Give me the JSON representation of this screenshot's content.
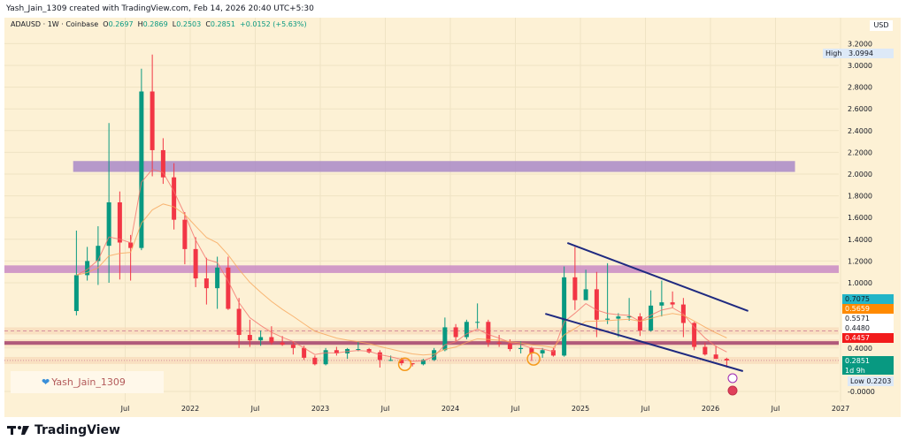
{
  "header": {
    "text": "Yash_Jain_1309 created with TradingView.com, Feb 14, 2026 20:40 UTC+5:30"
  },
  "legend": {
    "symbol": "ADAUSD · 1W · Coinbase",
    "o_label": "O",
    "o": "0.2697",
    "h_label": "H",
    "h": "0.2869",
    "l_label": "L",
    "l": "0.2503",
    "c_label": "C",
    "c": "0.2851",
    "change": "+0.0152 (+5.63%)"
  },
  "axis": {
    "currency": "USD"
  },
  "price_labels": {
    "high_label": "High",
    "high": "3.0994",
    "low_label": "Low",
    "low": "0.2203",
    "cyan": "0.7075",
    "orange": "0.5659",
    "white1": "0.5571",
    "white2": "0.4480",
    "red": "0.4457",
    "last": "0.2851",
    "countdown": "1d 9h"
  },
  "watermark": {
    "text": "Yash_Jain_1309"
  },
  "brand": {
    "name": "TradingView"
  },
  "colors": {
    "up": "#089981",
    "down": "#f23645",
    "zone": "#9c6fc0",
    "channel": "#1f2a80",
    "bg": "#fdf1d5"
  },
  "chart_data": {
    "type": "candlestick",
    "title": "ADAUSD · 1W · Coinbase",
    "y_scale": "linear",
    "ylim": [
      -0.05,
      3.25
    ],
    "y_ticks": [
      "3.2000",
      "3.0000",
      "2.8000",
      "2.6000",
      "2.4000",
      "2.2000",
      "2.0000",
      "1.8000",
      "1.6000",
      "1.4000",
      "1.2000",
      "1.0000",
      "0.4000",
      "-0.0000"
    ],
    "y_tick_values": [
      3.2,
      3.0,
      2.8,
      2.6,
      2.4,
      2.2,
      2.0,
      1.8,
      1.6,
      1.4,
      1.2,
      1.0,
      0.4,
      0
    ],
    "x_ticks": [
      "Jul",
      "2022",
      "Jul",
      "2023",
      "Jul",
      "2024",
      "Jul",
      "2025",
      "Jul",
      "2026",
      "Jul",
      "2027"
    ],
    "x_tick_values": [
      2021.5,
      2022,
      2022.5,
      2023,
      2023.5,
      2024,
      2024.5,
      2025,
      2025.5,
      2026,
      2026.5,
      2027
    ],
    "grid": true,
    "candles_monthly_approx": [
      [
        "2021-02",
        0.74,
        1.48,
        0.7,
        1.07
      ],
      [
        "2021-03",
        1.07,
        1.33,
        1.02,
        1.2
      ],
      [
        "2021-04",
        1.2,
        1.52,
        0.98,
        1.34
      ],
      [
        "2021-05",
        1.34,
        2.47,
        1.0,
        1.74
      ],
      [
        "2021-06",
        1.74,
        1.84,
        1.03,
        1.37
      ],
      [
        "2021-07",
        1.37,
        1.44,
        1.02,
        1.32
      ],
      [
        "2021-08",
        1.32,
        2.97,
        1.3,
        2.76
      ],
      [
        "2021-09",
        2.76,
        3.1,
        1.98,
        2.22
      ],
      [
        "2021-10",
        2.22,
        2.33,
        1.91,
        1.97
      ],
      [
        "2021-11",
        1.97,
        2.1,
        1.49,
        1.58
      ],
      [
        "2021-12",
        1.58,
        1.65,
        1.17,
        1.31
      ],
      [
        "2022-01",
        1.31,
        1.42,
        0.96,
        1.04
      ],
      [
        "2022-02",
        1.04,
        1.23,
        0.8,
        0.95
      ],
      [
        "2022-03",
        0.95,
        1.24,
        0.76,
        1.14
      ],
      [
        "2022-04",
        1.14,
        1.24,
        0.75,
        0.76
      ],
      [
        "2022-05",
        0.76,
        0.86,
        0.4,
        0.52
      ],
      [
        "2022-06",
        0.52,
        0.66,
        0.41,
        0.47
      ],
      [
        "2022-07",
        0.47,
        0.56,
        0.42,
        0.5
      ],
      [
        "2022-08",
        0.5,
        0.6,
        0.43,
        0.45
      ],
      [
        "2022-09",
        0.45,
        0.51,
        0.42,
        0.43
      ],
      [
        "2022-10",
        0.43,
        0.46,
        0.34,
        0.4
      ],
      [
        "2022-11",
        0.4,
        0.42,
        0.29,
        0.31
      ],
      [
        "2022-12",
        0.31,
        0.33,
        0.24,
        0.25
      ],
      [
        "2023-01",
        0.25,
        0.4,
        0.24,
        0.38
      ],
      [
        "2023-02",
        0.38,
        0.41,
        0.33,
        0.35
      ],
      [
        "2023-03",
        0.35,
        0.4,
        0.3,
        0.39
      ],
      [
        "2023-04",
        0.39,
        0.46,
        0.37,
        0.39
      ],
      [
        "2023-05",
        0.39,
        0.4,
        0.35,
        0.36
      ],
      [
        "2023-06",
        0.36,
        0.38,
        0.22,
        0.29
      ],
      [
        "2023-07",
        0.29,
        0.33,
        0.28,
        0.29
      ],
      [
        "2023-08",
        0.29,
        0.31,
        0.24,
        0.26
      ],
      [
        "2023-09",
        0.26,
        0.26,
        0.23,
        0.25
      ],
      [
        "2023-10",
        0.25,
        0.3,
        0.24,
        0.29
      ],
      [
        "2023-11",
        0.29,
        0.4,
        0.28,
        0.38
      ],
      [
        "2023-12",
        0.38,
        0.68,
        0.37,
        0.59
      ],
      [
        "2024-01",
        0.59,
        0.62,
        0.46,
        0.5
      ],
      [
        "2024-02",
        0.5,
        0.66,
        0.48,
        0.64
      ],
      [
        "2024-03",
        0.64,
        0.81,
        0.58,
        0.64
      ],
      [
        "2024-04",
        0.64,
        0.66,
        0.41,
        0.45
      ],
      [
        "2024-05",
        0.45,
        0.52,
        0.41,
        0.44
      ],
      [
        "2024-06",
        0.44,
        0.48,
        0.37,
        0.39
      ],
      [
        "2024-07",
        0.39,
        0.46,
        0.35,
        0.4
      ],
      [
        "2024-08",
        0.4,
        0.41,
        0.28,
        0.35
      ],
      [
        "2024-09",
        0.35,
        0.4,
        0.31,
        0.38
      ],
      [
        "2024-10",
        0.38,
        0.4,
        0.32,
        0.33
      ],
      [
        "2024-11",
        0.33,
        1.15,
        0.32,
        1.05
      ],
      [
        "2024-12",
        1.05,
        1.33,
        0.75,
        0.84
      ],
      [
        "2025-01",
        0.84,
        1.12,
        0.86,
        0.94
      ],
      [
        "2025-02",
        0.94,
        1.1,
        0.5,
        0.66
      ],
      [
        "2025-03",
        0.66,
        1.18,
        0.62,
        0.67
      ],
      [
        "2025-04",
        0.67,
        0.72,
        0.5,
        0.69
      ],
      [
        "2025-05",
        0.69,
        0.86,
        0.65,
        0.69
      ],
      [
        "2025-06",
        0.69,
        0.72,
        0.51,
        0.56
      ],
      [
        "2025-07",
        0.56,
        0.93,
        0.55,
        0.79
      ],
      [
        "2025-08",
        0.79,
        1.02,
        0.69,
        0.82
      ],
      [
        "2025-09",
        0.82,
        0.92,
        0.77,
        0.8
      ],
      [
        "2025-10",
        0.8,
        0.86,
        0.5,
        0.63
      ],
      [
        "2025-11",
        0.63,
        0.64,
        0.38,
        0.41
      ],
      [
        "2025-12",
        0.41,
        0.45,
        0.33,
        0.34
      ],
      [
        "2026-01",
        0.34,
        0.42,
        0.3,
        0.3
      ],
      [
        "2026-02",
        0.3,
        0.31,
        0.22,
        0.285
      ]
    ],
    "zones": [
      {
        "from": 2.02,
        "to": 2.12,
        "start": 2021.1,
        "end": 2026.65,
        "color": "#a98ac8"
      },
      {
        "from": 1.09,
        "to": 1.16,
        "start": 2020.55,
        "end": 2027.0,
        "color": "#c98bc4"
      }
    ],
    "levels": [
      {
        "value": 0.5571,
        "style": "dashed",
        "color": "#d6909e"
      },
      {
        "value": 0.4457,
        "style": "solid",
        "color": "#b05a7a"
      },
      {
        "value": 0.2851,
        "style": "dotted",
        "color": "#d6909e"
      }
    ],
    "channel": [
      {
        "start": [
          2024.9,
          1.366
        ],
        "end": [
          2026.29,
          0.74
        ]
      },
      {
        "start": [
          2024.73,
          0.715
        ],
        "end": [
          2026.25,
          0.187
        ]
      }
    ],
    "markers": [
      {
        "date": 2023.65,
        "value": 0.25
      },
      {
        "date": 2024.64,
        "value": 0.3
      }
    ]
  }
}
